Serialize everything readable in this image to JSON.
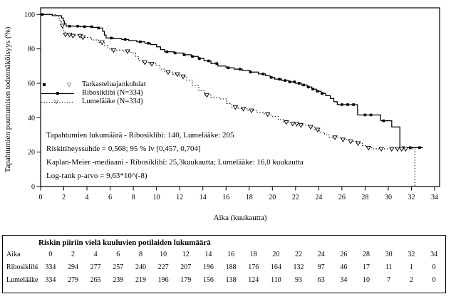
{
  "chart_data": {
    "type": "line",
    "subtype": "kaplan-meier-step",
    "title": "",
    "xlabel": "Aika (kuukautta)",
    "ylabel": "Tapahtumien puuttumisen todennäköisyys (%)",
    "xlim": [
      0,
      34
    ],
    "ylim": [
      0,
      100
    ],
    "x_ticks": [
      0,
      2,
      4,
      6,
      8,
      10,
      12,
      14,
      16,
      18,
      20,
      22,
      24,
      26,
      28,
      30,
      32,
      34
    ],
    "y_ticks": [
      0,
      20,
      40,
      60,
      80,
      100
    ],
    "grid": false,
    "legend_position": "inside-left",
    "legend": {
      "censor_label": "Tarkasteluajankohdat",
      "series_labels": [
        "Ribosiklibi (N=334)",
        "Lumelääke (N=334)"
      ]
    },
    "annotations": [
      "Tapahtumien lukumäärä - Ribosiklibi: 140, Lumelääke: 205",
      "Riskitiheyssuhde = 0,568; 95 % lv [0,457, 0,704]",
      "Kaplan-Meier -mediaani - Ribosiklibi: 25,3kuukautta; Lumelääke: 16,0 kuukautta",
      "Log-rank p-arvo = 9,63*10^(-8)"
    ],
    "series": [
      {
        "name": "Ribosiklibi (N=334)",
        "line_style": "solid",
        "marker": "filled-square",
        "color": "#000000",
        "steps": [
          [
            0,
            100
          ],
          [
            1.0,
            99.3
          ],
          [
            1.8,
            98.0
          ],
          [
            1.95,
            96.2
          ],
          [
            2.05,
            94.6
          ],
          [
            2.2,
            93.2
          ],
          [
            3.4,
            92.9
          ],
          [
            4.5,
            92.5
          ],
          [
            5.0,
            92.1
          ],
          [
            5.35,
            90.2
          ],
          [
            5.5,
            88.0
          ],
          [
            5.65,
            86.3
          ],
          [
            6.3,
            85.9
          ],
          [
            7.0,
            85.5
          ],
          [
            7.6,
            84.8
          ],
          [
            8.3,
            84.1
          ],
          [
            9.0,
            83.3
          ],
          [
            9.5,
            82.5
          ],
          [
            10.0,
            81.2
          ],
          [
            10.35,
            79.6
          ],
          [
            10.7,
            78.3
          ],
          [
            11.5,
            77.6
          ],
          [
            12.3,
            76.6
          ],
          [
            13.0,
            75.6
          ],
          [
            13.6,
            74.4
          ],
          [
            14.1,
            73.0
          ],
          [
            14.7,
            71.5
          ],
          [
            15.3,
            70.0
          ],
          [
            16.0,
            69.0
          ],
          [
            16.7,
            68.2
          ],
          [
            17.4,
            67.4
          ],
          [
            18.1,
            66.5
          ],
          [
            18.8,
            65.4
          ],
          [
            19.4,
            64.4
          ],
          [
            19.8,
            63.4
          ],
          [
            20.2,
            62.4
          ],
          [
            20.8,
            61.6
          ],
          [
            21.4,
            60.8
          ],
          [
            22.0,
            60.0
          ],
          [
            22.5,
            59.0
          ],
          [
            23.0,
            57.8
          ],
          [
            23.4,
            56.6
          ],
          [
            23.8,
            55.4
          ],
          [
            24.2,
            54.1
          ],
          [
            24.6,
            52.8
          ],
          [
            25.0,
            51.2
          ],
          [
            25.3,
            49.3
          ],
          [
            25.6,
            47.6
          ],
          [
            27.35,
            41.6
          ],
          [
            29.35,
            38.2
          ],
          [
            30.3,
            34.6
          ],
          [
            31.0,
            22.6
          ],
          [
            33.0,
            22.6
          ]
        ],
        "censor_times": [
          0.15,
          2.5,
          3.2,
          3.8,
          4.4,
          5.0,
          6.1,
          7.3,
          8.6,
          9.3,
          10.9,
          11.6,
          12.4,
          13.1,
          13.7,
          14.5,
          15.2,
          16.2,
          17.2,
          18.1,
          19.2,
          19.9,
          20.6,
          21.1,
          21.5,
          21.9,
          22.3,
          22.7,
          23.1,
          23.5,
          23.9,
          24.3,
          26.0,
          26.5,
          27.0,
          28.0,
          28.5,
          29.6,
          31.3,
          31.9,
          32.7
        ]
      },
      {
        "name": "Lumelääke (N=334)",
        "line_style": "dotted",
        "marker": "open-triangle-down",
        "color": "#000000",
        "steps": [
          [
            0,
            100
          ],
          [
            1.4,
            99.0
          ],
          [
            1.6,
            96.5
          ],
          [
            1.8,
            93.5
          ],
          [
            1.95,
            90.5
          ],
          [
            2.1,
            88.3
          ],
          [
            2.6,
            87.6
          ],
          [
            3.5,
            86.7
          ],
          [
            4.4,
            85.2
          ],
          [
            5.0,
            83.8
          ],
          [
            5.5,
            82.0
          ],
          [
            5.8,
            80.2
          ],
          [
            6.1,
            79.3
          ],
          [
            7.1,
            78.6
          ],
          [
            7.8,
            77.6
          ],
          [
            8.2,
            75.6
          ],
          [
            8.45,
            73.2
          ],
          [
            8.8,
            72.2
          ],
          [
            9.4,
            71.3
          ],
          [
            10.0,
            70.3
          ],
          [
            10.3,
            68.2
          ],
          [
            10.7,
            66.5
          ],
          [
            11.4,
            65.3
          ],
          [
            12.0,
            64.0
          ],
          [
            12.6,
            61.8
          ],
          [
            13.1,
            58.8
          ],
          [
            13.65,
            55.8
          ],
          [
            14.15,
            53.2
          ],
          [
            14.7,
            51.8
          ],
          [
            15.4,
            50.9
          ],
          [
            16.05,
            48.2
          ],
          [
            16.5,
            46.2
          ],
          [
            17.1,
            45.2
          ],
          [
            17.9,
            44.2
          ],
          [
            18.6,
            43.2
          ],
          [
            19.3,
            42.0
          ],
          [
            19.9,
            40.8
          ],
          [
            20.5,
            38.9
          ],
          [
            21.0,
            37.4
          ],
          [
            21.7,
            36.5
          ],
          [
            22.4,
            35.7
          ],
          [
            23.1,
            34.7
          ],
          [
            23.65,
            33.1
          ],
          [
            24.05,
            31.5
          ],
          [
            24.5,
            30.0
          ],
          [
            24.9,
            28.6
          ],
          [
            26.0,
            27.3
          ],
          [
            26.65,
            26.2
          ],
          [
            27.25,
            25.2
          ],
          [
            27.75,
            23.8
          ],
          [
            28.15,
            22.5
          ],
          [
            28.6,
            21.9
          ],
          [
            32.3,
            21.9
          ],
          [
            32.3,
            0
          ]
        ],
        "censor_times": [
          1.88,
          2.15,
          2.5,
          2.8,
          3.4,
          3.65,
          5.3,
          6.3,
          7.5,
          9.0,
          9.6,
          11.0,
          11.8,
          12.3,
          14.35,
          16.8,
          17.5,
          18.2,
          19.6,
          21.2,
          21.75,
          22.1,
          22.45,
          23.3,
          23.9,
          25.4,
          26.1,
          26.75,
          27.4,
          28.3,
          29.4,
          30.3,
          30.8,
          31.15,
          31.5
        ]
      }
    ]
  },
  "risk_table": {
    "title": "Riskin piiriin vielä kuuluvien potilaiden lukumäärä",
    "time_label": "Aika",
    "times": [
      0,
      2,
      4,
      6,
      8,
      10,
      12,
      14,
      16,
      18,
      20,
      22,
      24,
      26,
      28,
      30,
      32,
      34
    ],
    "rows": [
      {
        "label": "Ribosiklibi",
        "values": [
          334,
          294,
          277,
          257,
          240,
          227,
          207,
          196,
          188,
          176,
          164,
          132,
          97,
          46,
          17,
          11,
          1,
          0
        ]
      },
      {
        "label": "Lumelääke",
        "values": [
          334,
          279,
          265,
          239,
          219,
          196,
          179,
          156,
          138,
          124,
          110,
          93,
          63,
          34,
          10,
          7,
          2,
          0
        ]
      }
    ]
  }
}
